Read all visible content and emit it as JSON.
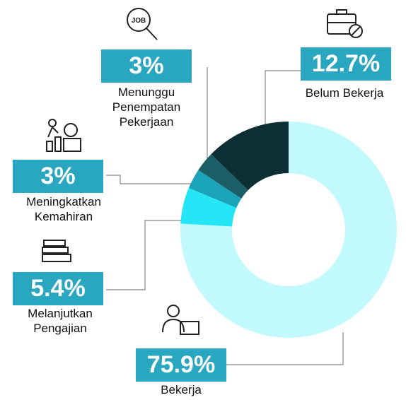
{
  "chart_data": {
    "type": "pie",
    "donut": true,
    "categories": [
      "Bekerja",
      "Melanjutkan\nPengajian",
      "Meningkatkan\nKemahiran",
      "Menunggu\nPenempatan\nPekerjaan",
      "Belum Bekerja"
    ],
    "values": [
      75.9,
      5.4,
      3,
      3,
      12.7
    ],
    "value_labels": [
      "75.9%",
      "5.4%",
      "3%",
      "3%",
      "12.7%"
    ],
    "colors": [
      "#c2f9fc",
      "#24e6f6",
      "#1ba4b9",
      "#1b5e66",
      "#0c2f35"
    ]
  }
}
